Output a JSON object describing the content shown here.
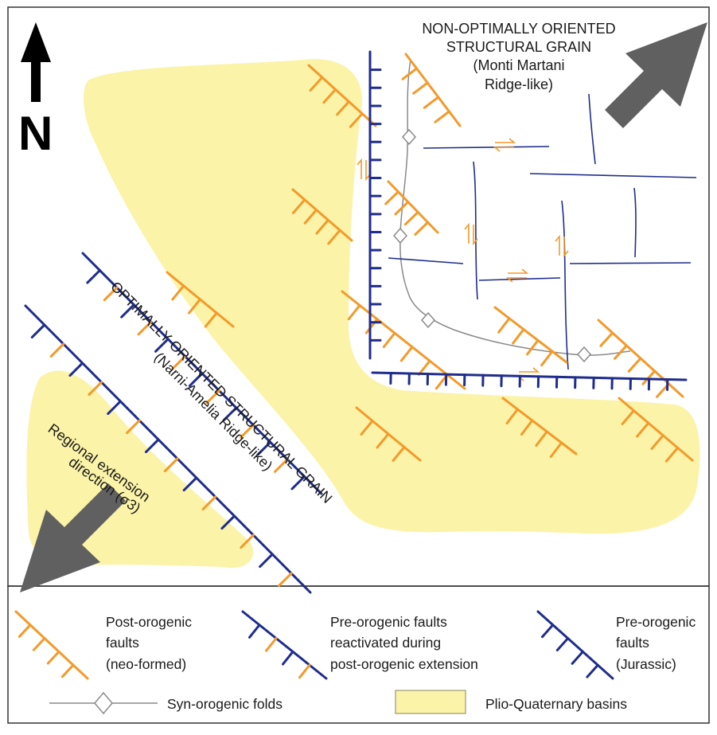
{
  "colors": {
    "basin": "#fbf3a8",
    "neo_fault": "#f39a2a",
    "pre_fault": "#1f2d8c",
    "fold": "#8a8a8a",
    "arrow": "#606060",
    "frame": "#333333"
  },
  "map": {
    "north_label": "N",
    "non_optimal": {
      "line1": "NON-OPTIMALLY ORIENTED",
      "line2": "STRUCTURAL GRAIN",
      "line3": "(Monti Martani",
      "line4": "Ridge-like)"
    },
    "optimal": {
      "line1": "OPTIMALLY ORIENTED STRUCTURAL GRAIN",
      "line2": "(Narni-Amelia Ridge-like)"
    },
    "extension": {
      "line1": "Regional extension",
      "line2": "direction (σ3)"
    }
  },
  "legend": {
    "neo_faults": [
      "Post-orogenic",
      "faults",
      "(neo-formed)"
    ],
    "reactivated_faults": [
      "Pre-orogenic faults",
      "reactivated during",
      "post-orogenic extension"
    ],
    "jurassic_faults": [
      "Pre-orogenic",
      "faults",
      "(Jurassic)"
    ],
    "folds": "Syn-orogenic folds",
    "basins": "Plio-Quaternary basins"
  }
}
